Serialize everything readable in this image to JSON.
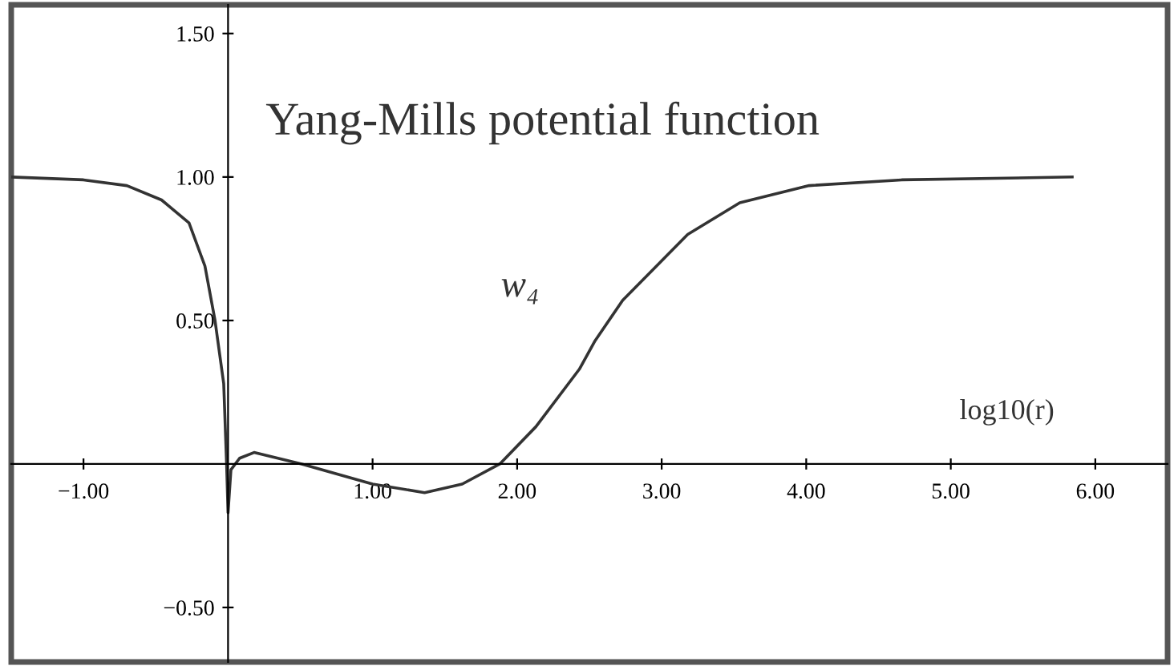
{
  "chart_data": {
    "type": "line",
    "title": "Yang-Mills potential function",
    "xlabel": "log10(r)",
    "x": [
      -1.5,
      -1.0,
      -0.7,
      -0.46,
      -0.27,
      -0.16,
      -0.09,
      -0.03,
      -0.01,
      0.0,
      0.02,
      0.08,
      0.18,
      0.51,
      1.0,
      1.36,
      1.62,
      1.88,
      2.13,
      2.43,
      2.54,
      2.73,
      3.18,
      3.54,
      4.02,
      4.66,
      5.84
    ],
    "series": [
      {
        "name": "w₄",
        "color": "#333333",
        "values": [
          1.0,
          0.99,
          0.97,
          0.92,
          0.84,
          0.69,
          0.5,
          0.28,
          0.0,
          -0.17,
          -0.02,
          0.02,
          0.04,
          0.0,
          -0.07,
          -0.1,
          -0.07,
          0.0,
          0.13,
          0.33,
          0.43,
          0.57,
          0.8,
          0.91,
          0.97,
          0.99,
          1.0
        ]
      }
    ],
    "xlim": [
      -1.5,
      6.5
    ],
    "ylim": [
      -0.69,
      1.6
    ],
    "xticks": [
      {
        "value": -1,
        "label": "−1.00"
      },
      {
        "value": 1,
        "label": "1.00"
      },
      {
        "value": 2,
        "label": "2.00"
      },
      {
        "value": 3,
        "label": "3.00"
      },
      {
        "value": 4,
        "label": "4.00"
      },
      {
        "value": 5,
        "label": "5.00"
      },
      {
        "value": 6,
        "label": "6.00"
      }
    ],
    "yticks": [
      {
        "value": -0.5,
        "label": "−0.50"
      },
      {
        "value": 0.5,
        "label": "0.50"
      },
      {
        "value": 1,
        "label": "1.00"
      },
      {
        "value": 1.5,
        "label": "1.50"
      }
    ],
    "grid": false,
    "legend": false,
    "marker": "none",
    "line_style": "solid"
  }
}
